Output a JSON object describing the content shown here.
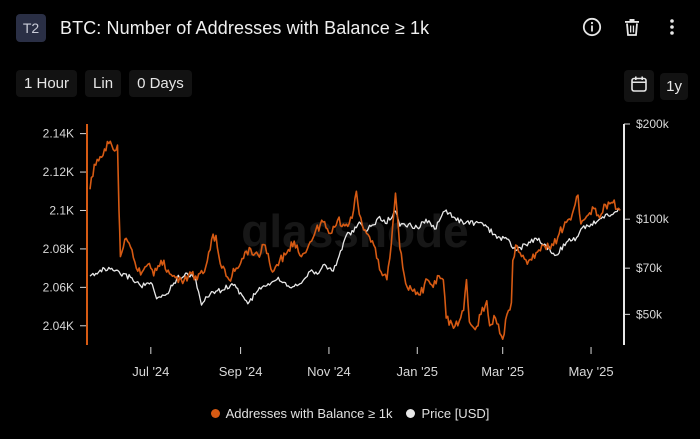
{
  "header": {
    "badge": "T2",
    "title": "BTC: Number of Addresses with Balance ≥ 1k",
    "icons": [
      "info-icon",
      "trash-icon",
      "more-vertical-icon"
    ]
  },
  "toolbar": {
    "resolution": "1 Hour",
    "scale": "Lin",
    "sma": "0 Days",
    "range": "1y",
    "range_icon": "calendar-icon"
  },
  "watermark": "glassnode",
  "colors": {
    "addresses": "#d65a13",
    "price": "#e8e8e8",
    "grid": "#2a2a2a",
    "axis_text": "#d8d8d8"
  },
  "chart_data": {
    "type": "line",
    "title": "BTC: Number of Addresses with Balance ≥ 1k",
    "x_range": [
      "2024-05-20",
      "2025-05-21"
    ],
    "x_ticks": [
      {
        "date": "2024-07-01",
        "label": "Jul '24"
      },
      {
        "date": "2024-09-01",
        "label": "Sep '24"
      },
      {
        "date": "2024-11-01",
        "label": "Nov '24"
      },
      {
        "date": "2025-01-01",
        "label": "Jan '25"
      },
      {
        "date": "2025-03-01",
        "label": "Mar '25"
      },
      {
        "date": "2025-05-01",
        "label": "May '25"
      }
    ],
    "y_left": {
      "ticks": [
        2040,
        2060,
        2080,
        2100,
        2120,
        2140
      ],
      "tick_labels": [
        "2.04K",
        "2.06K",
        "2.08K",
        "2.1K",
        "2.12K",
        "2.14K"
      ],
      "range": [
        2030,
        2145
      ]
    },
    "y_right": {
      "scale": "log",
      "ticks": [
        50000,
        70000,
        100000,
        200000
      ],
      "tick_labels": [
        "$50k",
        "$70k",
        "$100k",
        "$200k"
      ],
      "range": [
        40000,
        200000
      ]
    },
    "series": [
      {
        "name": "Addresses with Balance ≥ 1k",
        "axis": "left",
        "color": "#d65a13",
        "points": [
          [
            "2024-05-20",
            2111
          ],
          [
            "2024-05-23",
            2124
          ],
          [
            "2024-05-27",
            2128
          ],
          [
            "2024-05-30",
            2132
          ],
          [
            "2024-06-03",
            2136
          ],
          [
            "2024-06-06",
            2131
          ],
          [
            "2024-06-08",
            2134
          ],
          [
            "2024-06-09",
            2100
          ],
          [
            "2024-06-10",
            2076
          ],
          [
            "2024-06-13",
            2085
          ],
          [
            "2024-06-17",
            2081
          ],
          [
            "2024-06-21",
            2070
          ],
          [
            "2024-06-25",
            2068
          ],
          [
            "2024-06-29",
            2072
          ],
          [
            "2024-07-03",
            2066
          ],
          [
            "2024-07-08",
            2074
          ],
          [
            "2024-07-13",
            2069
          ],
          [
            "2024-07-18",
            2065
          ],
          [
            "2024-07-23",
            2062
          ],
          [
            "2024-07-28",
            2068
          ],
          [
            "2024-08-02",
            2064
          ],
          [
            "2024-08-07",
            2068
          ],
          [
            "2024-08-12",
            2085
          ],
          [
            "2024-08-15",
            2087
          ],
          [
            "2024-08-19",
            2070
          ],
          [
            "2024-08-24",
            2064
          ],
          [
            "2024-08-29",
            2070
          ],
          [
            "2024-09-03",
            2075
          ],
          [
            "2024-09-08",
            2080
          ],
          [
            "2024-09-13",
            2077
          ],
          [
            "2024-09-18",
            2082
          ],
          [
            "2024-09-23",
            2068
          ],
          [
            "2024-09-28",
            2074
          ],
          [
            "2024-10-03",
            2078
          ],
          [
            "2024-10-08",
            2084
          ],
          [
            "2024-10-13",
            2076
          ],
          [
            "2024-10-18",
            2082
          ],
          [
            "2024-10-23",
            2090
          ],
          [
            "2024-10-28",
            2094
          ],
          [
            "2024-11-02",
            2088
          ],
          [
            "2024-11-07",
            2095
          ],
          [
            "2024-11-12",
            2092
          ],
          [
            "2024-11-17",
            2096
          ],
          [
            "2024-11-20",
            2110
          ],
          [
            "2024-11-22",
            2098
          ],
          [
            "2024-11-27",
            2088
          ],
          [
            "2024-12-02",
            2082
          ],
          [
            "2024-12-07",
            2068
          ],
          [
            "2024-12-11",
            2064
          ],
          [
            "2024-12-14",
            2082
          ],
          [
            "2024-12-17",
            2109
          ],
          [
            "2024-12-20",
            2080
          ],
          [
            "2024-12-24",
            2062
          ],
          [
            "2024-12-29",
            2058
          ],
          [
            "2025-01-03",
            2056
          ],
          [
            "2025-01-08",
            2064
          ],
          [
            "2025-01-12",
            2060
          ],
          [
            "2025-01-16",
            2066
          ],
          [
            "2025-01-19",
            2064
          ],
          [
            "2025-01-21",
            2044
          ],
          [
            "2025-01-25",
            2041
          ],
          [
            "2025-01-29",
            2040
          ],
          [
            "2025-02-02",
            2048
          ],
          [
            "2025-02-04",
            2064
          ],
          [
            "2025-02-06",
            2042
          ],
          [
            "2025-02-10",
            2038
          ],
          [
            "2025-02-14",
            2046
          ],
          [
            "2025-02-18",
            2053
          ],
          [
            "2025-02-20",
            2040
          ],
          [
            "2025-02-24",
            2044
          ],
          [
            "2025-02-27",
            2036
          ],
          [
            "2025-03-01",
            2033
          ],
          [
            "2025-03-04",
            2046
          ],
          [
            "2025-03-07",
            2052
          ],
          [
            "2025-03-08",
            2074
          ],
          [
            "2025-03-10",
            2082
          ],
          [
            "2025-03-14",
            2076
          ],
          [
            "2025-03-19",
            2074
          ],
          [
            "2025-03-24",
            2078
          ],
          [
            "2025-03-29",
            2082
          ],
          [
            "2025-04-03",
            2080
          ],
          [
            "2025-04-08",
            2086
          ],
          [
            "2025-04-13",
            2094
          ],
          [
            "2025-04-18",
            2098
          ],
          [
            "2025-04-22",
            2108
          ],
          [
            "2025-04-24",
            2093
          ],
          [
            "2025-04-28",
            2097
          ],
          [
            "2025-05-03",
            2101
          ],
          [
            "2025-05-07",
            2096
          ],
          [
            "2025-05-11",
            2103
          ],
          [
            "2025-05-16",
            2104
          ],
          [
            "2025-05-21",
            2100
          ]
        ]
      },
      {
        "name": "Price [USD]",
        "axis": "right",
        "color": "#e8e8e8",
        "points": [
          [
            "2024-05-20",
            66000
          ],
          [
            "2024-05-27",
            69000
          ],
          [
            "2024-06-03",
            69500
          ],
          [
            "2024-06-10",
            67000
          ],
          [
            "2024-06-17",
            65500
          ],
          [
            "2024-06-24",
            61500
          ],
          [
            "2024-07-01",
            63000
          ],
          [
            "2024-07-05",
            56000
          ],
          [
            "2024-07-12",
            58000
          ],
          [
            "2024-07-19",
            65000
          ],
          [
            "2024-07-26",
            67500
          ],
          [
            "2024-08-01",
            64500
          ],
          [
            "2024-08-05",
            53500
          ],
          [
            "2024-08-12",
            59000
          ],
          [
            "2024-08-19",
            59500
          ],
          [
            "2024-08-26",
            62500
          ],
          [
            "2024-09-02",
            57500
          ],
          [
            "2024-09-06",
            54000
          ],
          [
            "2024-09-13",
            59500
          ],
          [
            "2024-09-20",
            62500
          ],
          [
            "2024-09-27",
            65500
          ],
          [
            "2024-10-04",
            61500
          ],
          [
            "2024-10-11",
            62000
          ],
          [
            "2024-10-18",
            68000
          ],
          [
            "2024-10-25",
            67500
          ],
          [
            "2024-10-29",
            72000
          ],
          [
            "2024-11-04",
            68500
          ],
          [
            "2024-11-08",
            76500
          ],
          [
            "2024-11-13",
            89000
          ],
          [
            "2024-11-18",
            91000
          ],
          [
            "2024-11-22",
            98000
          ],
          [
            "2024-11-26",
            92000
          ],
          [
            "2024-12-02",
            96000
          ],
          [
            "2024-12-05",
            101000
          ],
          [
            "2024-12-10",
            97000
          ],
          [
            "2024-12-17",
            106000
          ],
          [
            "2024-12-20",
            95000
          ],
          [
            "2024-12-26",
            96500
          ],
          [
            "2025-01-01",
            94000
          ],
          [
            "2025-01-07",
            100000
          ],
          [
            "2025-01-13",
            93000
          ],
          [
            "2025-01-20",
            106000
          ],
          [
            "2025-01-27",
            101000
          ],
          [
            "2025-02-03",
            97000
          ],
          [
            "2025-02-10",
            97500
          ],
          [
            "2025-02-17",
            96000
          ],
          [
            "2025-02-25",
            87000
          ],
          [
            "2025-03-03",
            87500
          ],
          [
            "2025-03-10",
            79500
          ],
          [
            "2025-03-17",
            83000
          ],
          [
            "2025-03-24",
            87000
          ],
          [
            "2025-03-31",
            82500
          ],
          [
            "2025-04-07",
            77000
          ],
          [
            "2025-04-14",
            84500
          ],
          [
            "2025-04-21",
            87500
          ],
          [
            "2025-04-25",
            94000
          ],
          [
            "2025-05-01",
            96500
          ],
          [
            "2025-05-08",
            100500
          ],
          [
            "2025-05-12",
            104000
          ],
          [
            "2025-05-16",
            103500
          ],
          [
            "2025-05-21",
            107000
          ]
        ]
      }
    ],
    "legend_position": "bottom-center",
    "grid": false
  }
}
